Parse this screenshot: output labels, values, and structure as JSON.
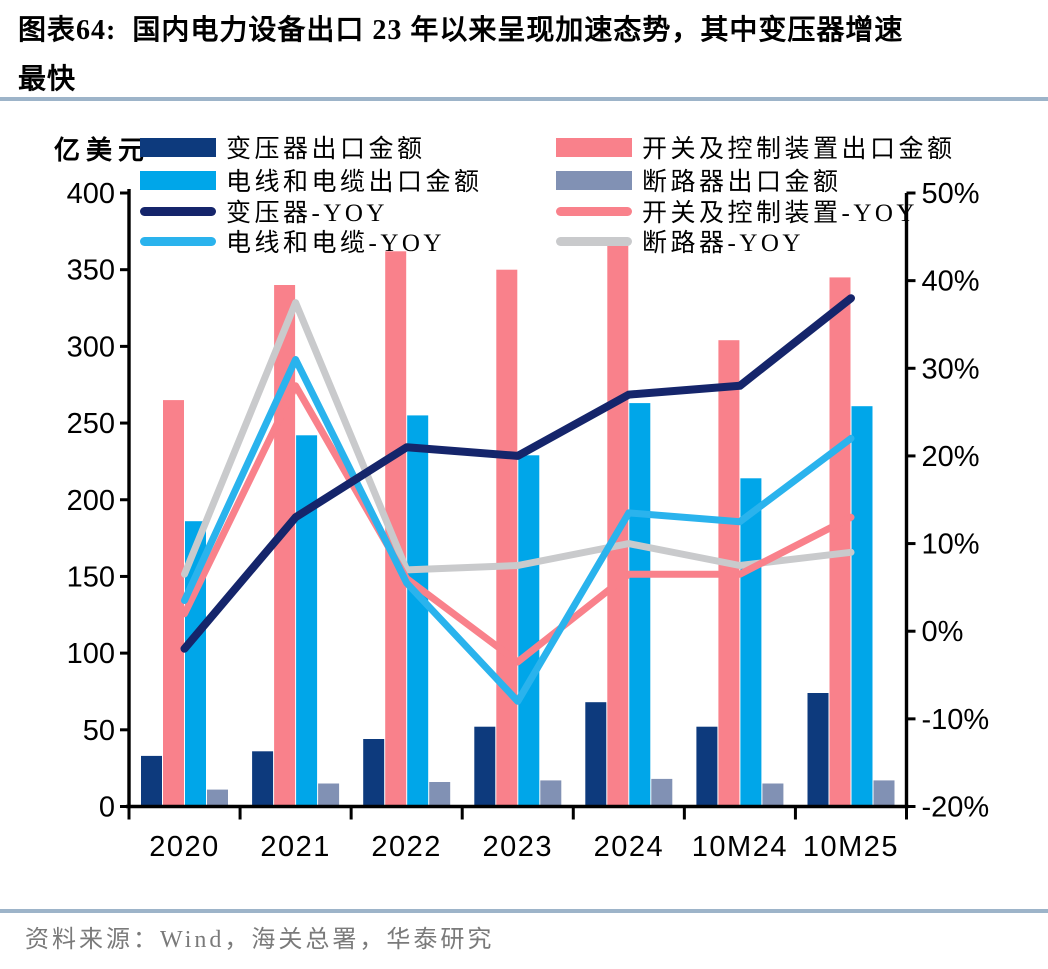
{
  "title": {
    "text": "图表64:  国内电力设备出口 23 年以来呈现加速态势，其中变压器增速\n最快"
  },
  "footer": {
    "source": "资料来源：Wind，海关总署，华泰研究"
  },
  "colors": {
    "navy_bar": "#0d3a7d",
    "pink_bar": "#f9818b",
    "lightblue_bar": "#00a6e9",
    "gray_bar": "#8191b4",
    "navy_line": "#15256b",
    "pink_line": "#f9818b",
    "lightblue_line": "#2ab3ed",
    "gray_line": "#c9cacc",
    "axis": "#000000",
    "divider": "#9db4c9",
    "footer_text": "#7a7a7a"
  },
  "legend": {
    "columns": [
      {
        "items": [
          {
            "swatch": "bar",
            "color_key": "navy_bar",
            "label": "变压器出口金额"
          },
          {
            "swatch": "bar",
            "color_key": "lightblue_bar",
            "label": "电线和电缆出口金额"
          },
          {
            "swatch": "line",
            "color_key": "navy_line",
            "label": "变压器-YOY"
          },
          {
            "swatch": "line",
            "color_key": "lightblue_line",
            "label": "电线和电缆-YOY"
          }
        ]
      },
      {
        "items": [
          {
            "swatch": "bar",
            "color_key": "pink_bar",
            "label": "开关及控制装置出口金额"
          },
          {
            "swatch": "bar",
            "color_key": "gray_bar",
            "label": "断路器出口金额"
          },
          {
            "swatch": "line",
            "color_key": "pink_line",
            "label": "开关及控制装置-YOY"
          },
          {
            "swatch": "line",
            "color_key": "gray_line",
            "label": "断路器-YOY"
          }
        ]
      }
    ]
  },
  "chart_data": {
    "type": "bar",
    "subtype": "combo-bar-line-dual-axis",
    "categories": [
      "2020",
      "2021",
      "2022",
      "2023",
      "2024",
      "10M24",
      "10M25"
    ],
    "bar_series": [
      {
        "name": "变压器出口金额",
        "color_key": "navy_bar",
        "axis": "left",
        "values": [
          33,
          36,
          44,
          52,
          68,
          52,
          74
        ]
      },
      {
        "name": "开关及控制装置出口金额",
        "color_key": "pink_bar",
        "axis": "left",
        "values": [
          265,
          340,
          362,
          350,
          371,
          304,
          345
        ]
      },
      {
        "name": "电线和电缆出口金额",
        "color_key": "lightblue_bar",
        "axis": "left",
        "values": [
          186,
          242,
          255,
          229,
          263,
          214,
          261
        ]
      },
      {
        "name": "断路器出口金额",
        "color_key": "gray_bar",
        "axis": "left",
        "values": [
          11,
          15,
          16,
          17,
          18,
          15,
          17
        ]
      }
    ],
    "line_series": [
      {
        "name": "断路器-YOY",
        "color_key": "gray_line",
        "axis": "right",
        "values": [
          6.5,
          37.5,
          7,
          7.5,
          10,
          7.5,
          9
        ]
      },
      {
        "name": "开关及控制装置-YOY",
        "color_key": "pink_line",
        "axis": "right",
        "values": [
          2,
          28,
          6,
          -3.5,
          6.5,
          6.5,
          13
        ]
      },
      {
        "name": "电线和电缆-YOY",
        "color_key": "lightblue_line",
        "axis": "right",
        "values": [
          3.5,
          31,
          5.5,
          -8,
          13.5,
          12.5,
          22
        ]
      },
      {
        "name": "变压器-YOY",
        "color_key": "navy_line",
        "axis": "right",
        "values": [
          -2,
          13,
          21,
          20,
          27,
          28,
          38
        ]
      }
    ],
    "left_axis": {
      "label": "亿美元",
      "min": 0,
      "max": 400,
      "step": 50,
      "tick_labels": [
        "0",
        "50",
        "100",
        "150",
        "200",
        "250",
        "300",
        "350",
        "400"
      ]
    },
    "right_axis": {
      "min": -20,
      "max": 50,
      "step": 10,
      "tick_labels": [
        "-20%",
        "-10%",
        "0%",
        "10%",
        "20%",
        "30%",
        "40%",
        "50%"
      ]
    },
    "grid": false,
    "legend_position": "top"
  }
}
